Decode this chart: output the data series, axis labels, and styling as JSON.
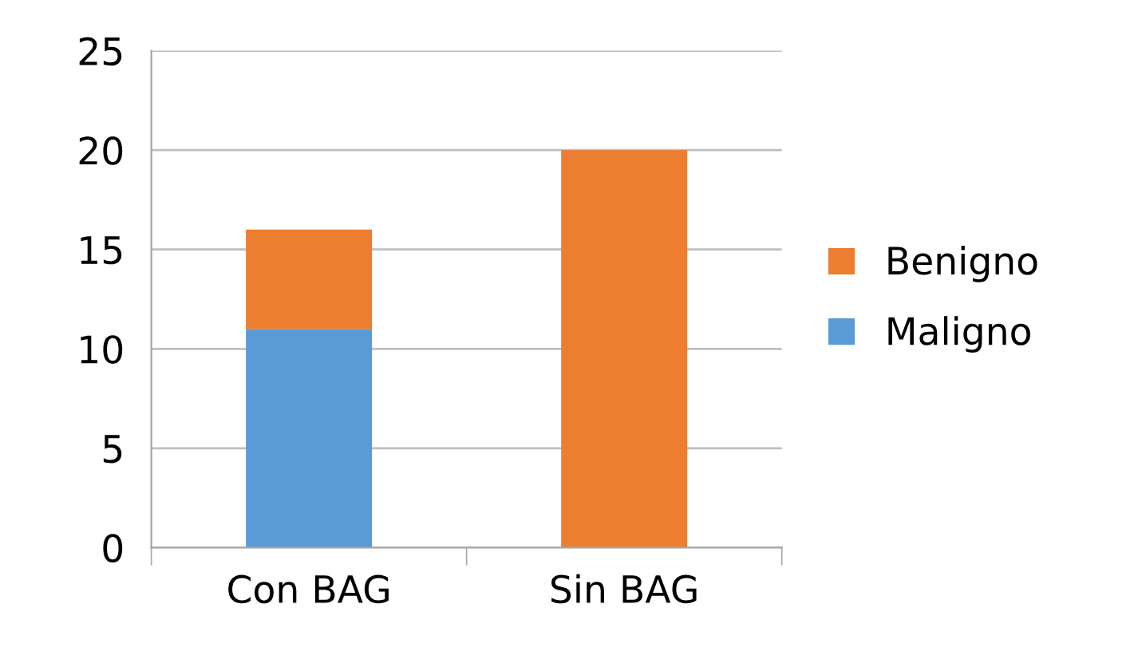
{
  "chart_data": {
    "type": "bar",
    "stacked": true,
    "categories": [
      "Con BAG",
      "Sin BAG"
    ],
    "series": [
      {
        "name": "Maligno",
        "color": "#5b9bd5",
        "values": [
          11,
          0
        ]
      },
      {
        "name": "Benigno",
        "color": "#ed7d31",
        "values": [
          5,
          20
        ]
      }
    ],
    "ylim": [
      0,
      25
    ],
    "yticks": [
      0,
      5,
      10,
      15,
      20,
      25
    ],
    "grid": "y",
    "legend": "right"
  }
}
